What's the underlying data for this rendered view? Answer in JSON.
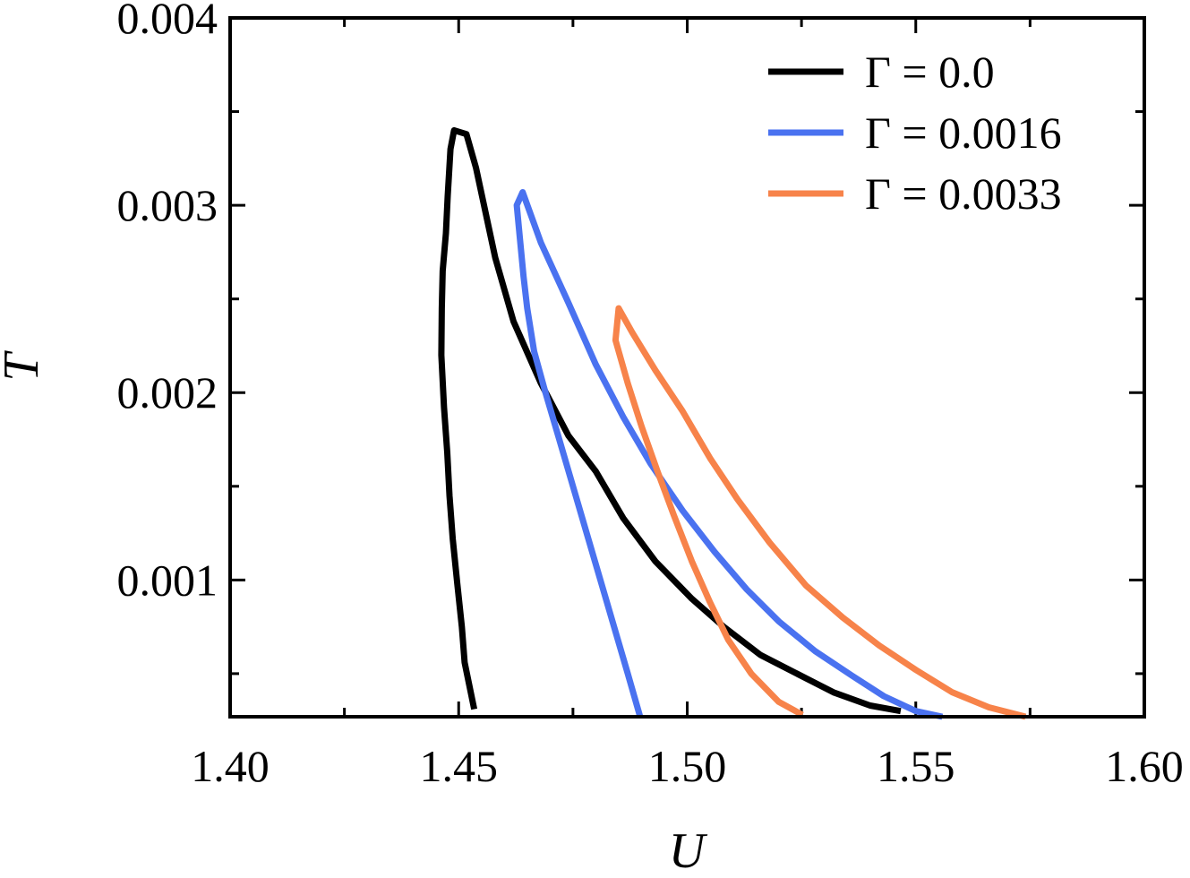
{
  "chart_data": {
    "type": "line",
    "title": "",
    "xlabel": "U",
    "ylabel": "T",
    "xlim": [
      1.4,
      1.6
    ],
    "ylim": [
      0.00027,
      0.004
    ],
    "x_ticks": [
      {
        "value": 1.4,
        "label": "1.40"
      },
      {
        "value": 1.45,
        "label": "1.45"
      },
      {
        "value": 1.5,
        "label": "1.50"
      },
      {
        "value": 1.55,
        "label": "1.55"
      },
      {
        "value": 1.6,
        "label": "1.60"
      }
    ],
    "x_minor": [
      1.425,
      1.475,
      1.525,
      1.575
    ],
    "y_ticks": [
      {
        "value": 0.001,
        "label": "0.001"
      },
      {
        "value": 0.002,
        "label": "0.002"
      },
      {
        "value": 0.003,
        "label": "0.003"
      },
      {
        "value": 0.004,
        "label": "0.004"
      }
    ],
    "y_minor": [
      0.0005,
      0.0015,
      0.0025,
      0.0035
    ],
    "grid": false,
    "legend_position": "top-right",
    "series": [
      {
        "name": "Γ = 0.0",
        "color": "#000000",
        "points": [
          [
            1.4534,
            0.00031
          ],
          [
            1.4513,
            0.00056
          ],
          [
            1.4507,
            0.00075
          ],
          [
            1.4497,
            0.00098
          ],
          [
            1.4487,
            0.00122
          ],
          [
            1.448,
            0.00145
          ],
          [
            1.4475,
            0.00168
          ],
          [
            1.4468,
            0.00192
          ],
          [
            1.4462,
            0.0022
          ],
          [
            1.4463,
            0.00245
          ],
          [
            1.4465,
            0.00265
          ],
          [
            1.4472,
            0.00285
          ],
          [
            1.4476,
            0.00305
          ],
          [
            1.4482,
            0.0033
          ],
          [
            1.449,
            0.0034
          ],
          [
            1.4517,
            0.00338
          ],
          [
            1.4538,
            0.0032
          ],
          [
            1.458,
            0.00272
          ],
          [
            1.462,
            0.00238
          ],
          [
            1.468,
            0.00205
          ],
          [
            1.474,
            0.00177
          ],
          [
            1.48,
            0.00158
          ],
          [
            1.486,
            0.00133
          ],
          [
            1.493,
            0.0011
          ],
          [
            1.501,
            0.0009
          ],
          [
            1.508,
            0.00075
          ],
          [
            1.516,
            0.0006
          ],
          [
            1.524,
            0.0005
          ],
          [
            1.532,
            0.0004
          ],
          [
            1.54,
            0.00033
          ],
          [
            1.5467,
            0.0003
          ]
        ]
      },
      {
        "name": "Γ = 0.0016",
        "color": "#4a72f0",
        "points": [
          [
            1.4897,
            0.00027
          ],
          [
            1.487,
            0.0005
          ],
          [
            1.484,
            0.00075
          ],
          [
            1.481,
            0.001
          ],
          [
            1.478,
            0.00125
          ],
          [
            1.475,
            0.0015
          ],
          [
            1.472,
            0.00175
          ],
          [
            1.469,
            0.002
          ],
          [
            1.4665,
            0.00222
          ],
          [
            1.465,
            0.00245
          ],
          [
            1.4642,
            0.00262
          ],
          [
            1.4634,
            0.00282
          ],
          [
            1.4627,
            0.003
          ],
          [
            1.464,
            0.00307
          ],
          [
            1.468,
            0.0028
          ],
          [
            1.474,
            0.00248
          ],
          [
            1.48,
            0.00215
          ],
          [
            1.486,
            0.00187
          ],
          [
            1.492,
            0.00162
          ],
          [
            1.499,
            0.00137
          ],
          [
            1.506,
            0.00115
          ],
          [
            1.513,
            0.00095
          ],
          [
            1.52,
            0.00078
          ],
          [
            1.528,
            0.00062
          ],
          [
            1.536,
            0.00049
          ],
          [
            1.543,
            0.00038
          ],
          [
            1.55,
            0.0003
          ],
          [
            1.5558,
            0.00027
          ]
        ]
      },
      {
        "name": "Γ = 0.0033",
        "color": "#f7834a",
        "points": [
          [
            1.5252,
            0.00028
          ],
          [
            1.52,
            0.00035
          ],
          [
            1.514,
            0.0005
          ],
          [
            1.509,
            0.00068
          ],
          [
            1.505,
            0.00088
          ],
          [
            1.501,
            0.0011
          ],
          [
            1.497,
            0.00135
          ],
          [
            1.4935,
            0.00158
          ],
          [
            1.49,
            0.00182
          ],
          [
            1.487,
            0.00205
          ],
          [
            1.4843,
            0.00228
          ],
          [
            1.485,
            0.00245
          ],
          [
            1.488,
            0.00232
          ],
          [
            1.493,
            0.00212
          ],
          [
            1.499,
            0.0019
          ],
          [
            1.505,
            0.00165
          ],
          [
            1.511,
            0.00143
          ],
          [
            1.518,
            0.0012
          ],
          [
            1.526,
            0.00097
          ],
          [
            1.534,
            0.0008
          ],
          [
            1.542,
            0.00065
          ],
          [
            1.55,
            0.00052
          ],
          [
            1.558,
            0.0004
          ],
          [
            1.566,
            0.00032
          ],
          [
            1.574,
            0.00027
          ]
        ]
      }
    ]
  }
}
